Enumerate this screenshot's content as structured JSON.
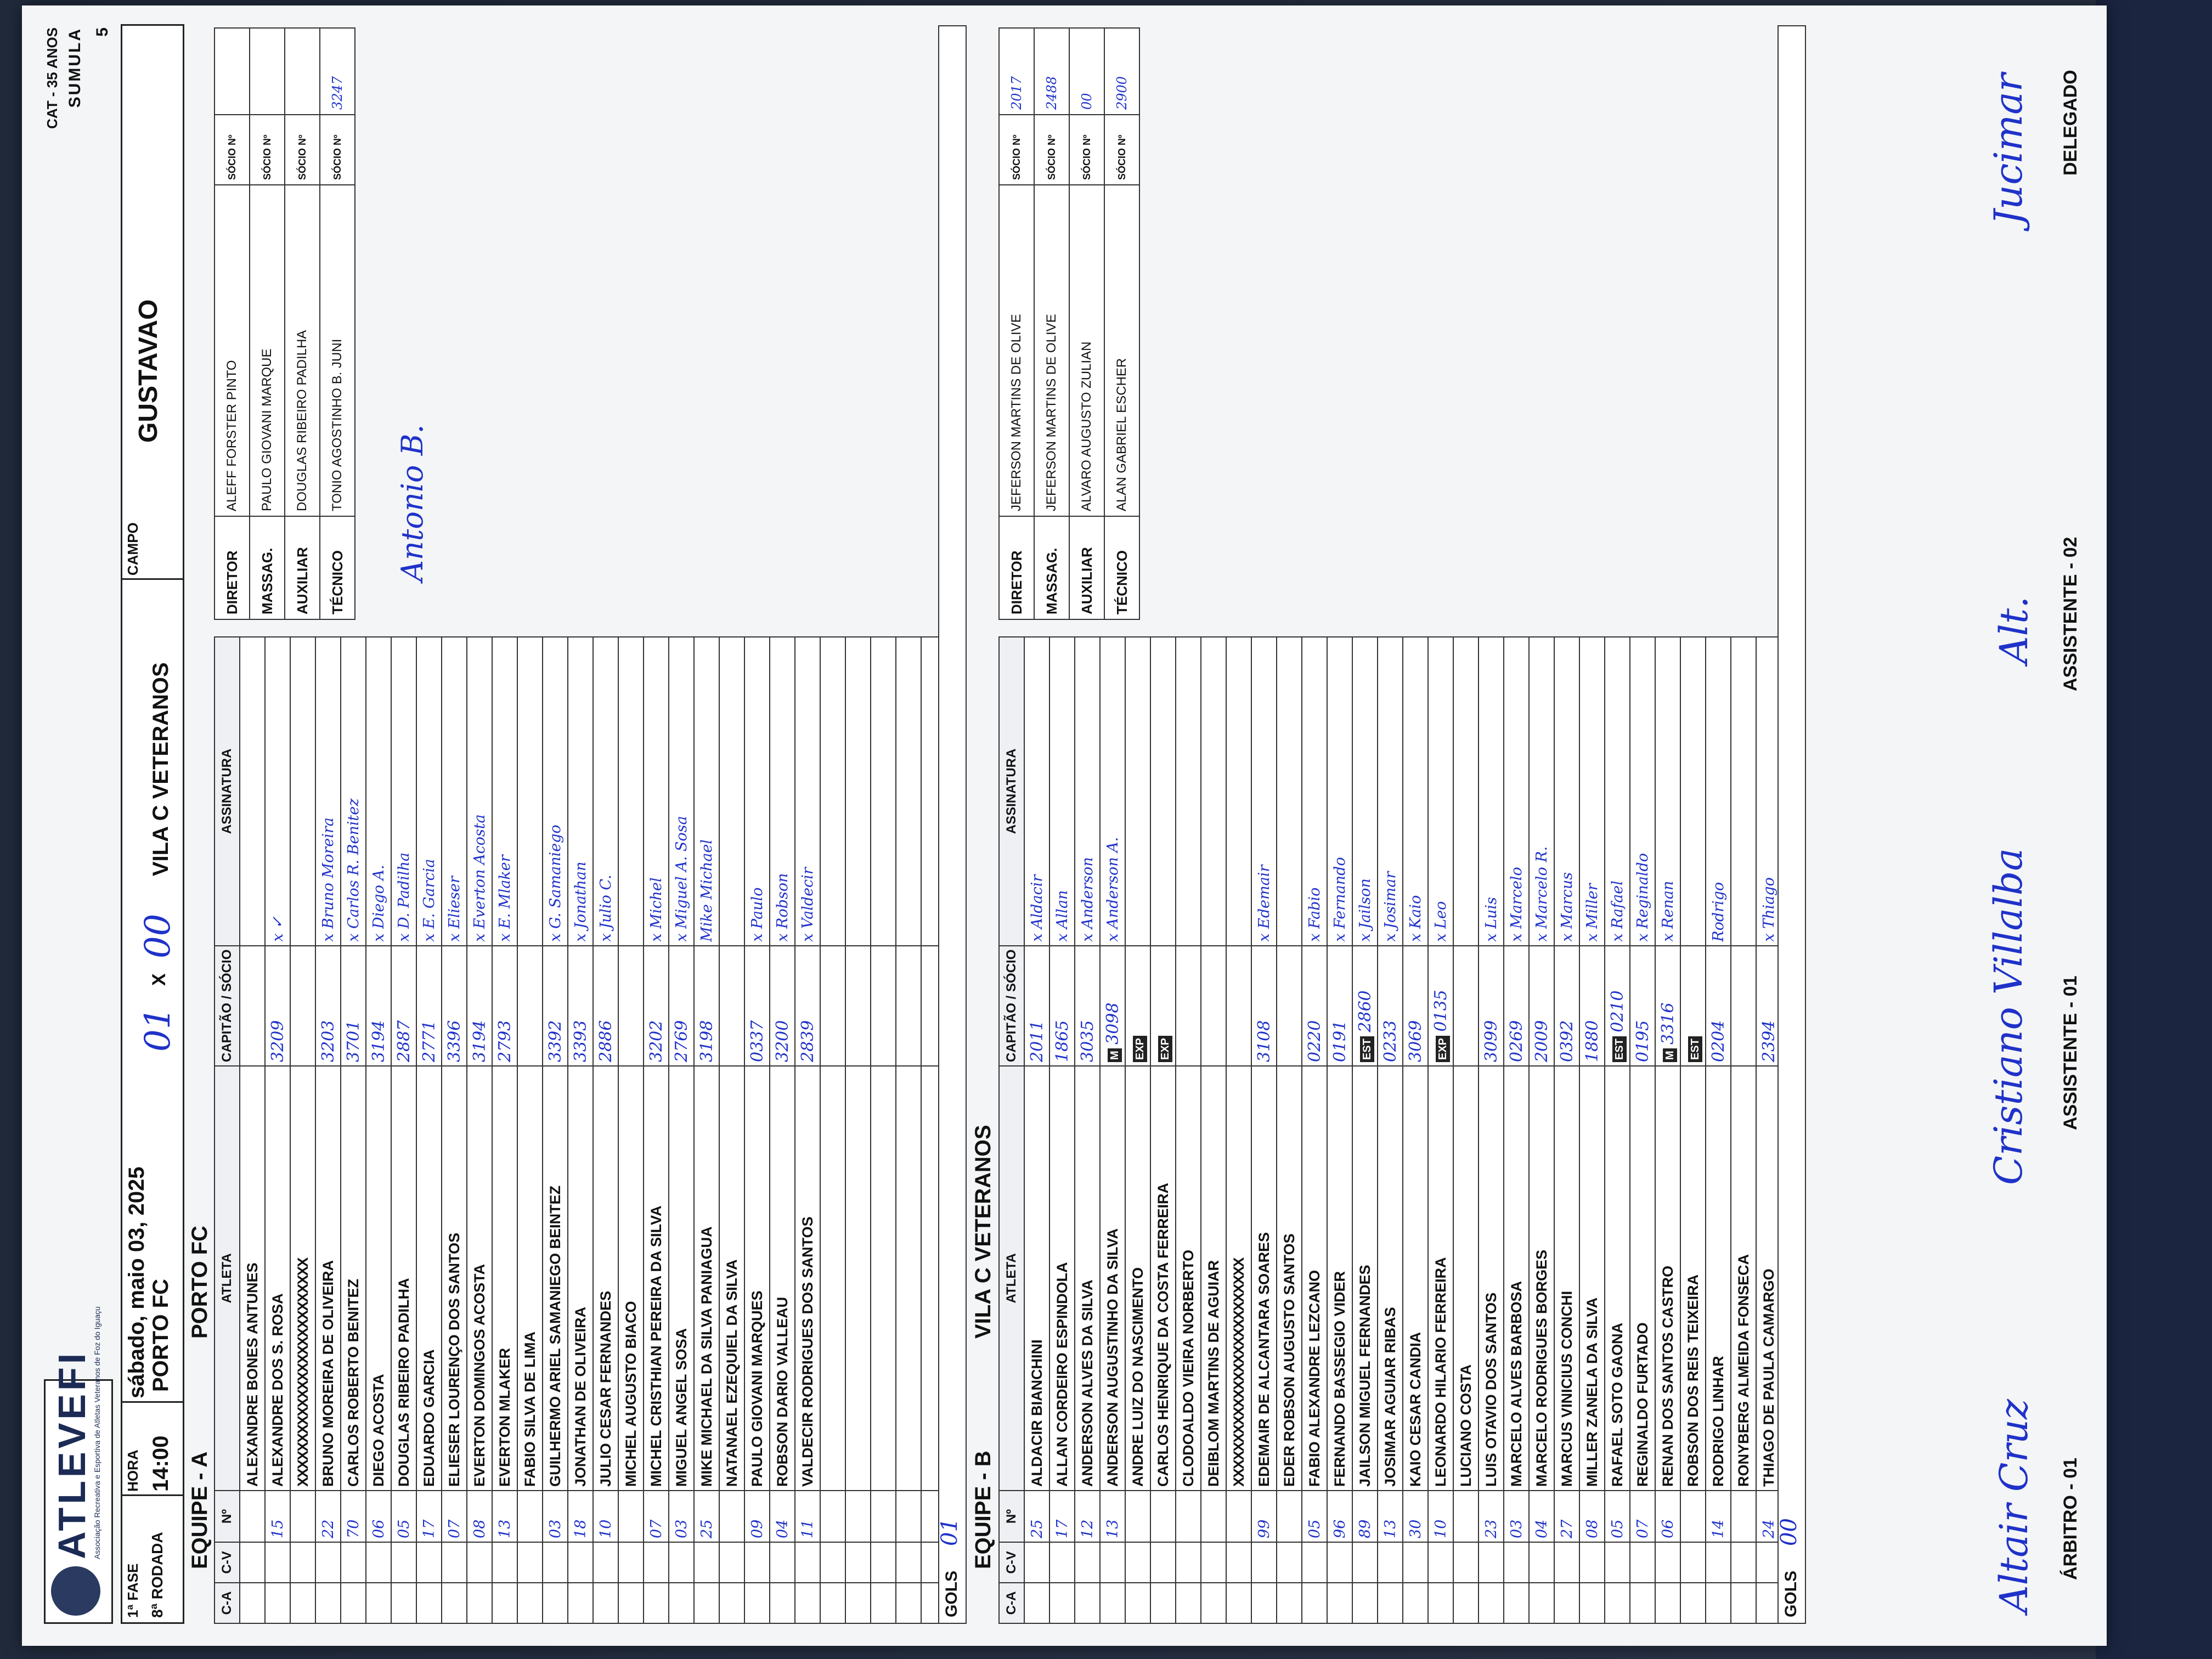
{
  "header": {
    "logo": "ATLEVEFI",
    "logo_sub": "Associação Recreativa e Esportiva de Atletas Veteranos de Foz do Iguaçu",
    "category": "CAT - 35 ANOS",
    "sheet": "SUMULA",
    "sheet_number": "5",
    "phase_label": "FASE",
    "phase": "1ª",
    "round_label": "RODADA",
    "round": "8ª",
    "time_label": "HORA",
    "time": "14:00",
    "date": "sábado, maio 03, 2025",
    "match_home": "PORTO FC",
    "match_away": "VILA C VETERANOS",
    "score_home": "01",
    "score_away": "00",
    "score_sep": "X",
    "field_label": "CAMPO",
    "field": "GUSTAVAO"
  },
  "team_a": {
    "label": "EQUIPE - A",
    "name": "PORTO FC",
    "col_ca": "C-A",
    "col_cv": "C-V",
    "col_num": "Nº",
    "col_athlete": "ATLETA",
    "col_captain": "CAPITÃO",
    "col_socio": "SÓCIO",
    "col_signature": "ASSINATURA",
    "goals_label": "GOLS",
    "goals": "01",
    "players": [
      {
        "num": "",
        "name": "ALEXANDRE BONES ANTUNES",
        "socio": "",
        "sign": ""
      },
      {
        "num": "15",
        "name": "ALEXANDRE DOS S. ROSA",
        "socio": "3209",
        "sign": "x ✓"
      },
      {
        "num": "",
        "name": "XXXXXXXXXXXXXXXXXXXXXXXXXX",
        "socio": "",
        "sign": ""
      },
      {
        "num": "22",
        "name": "BRUNO MOREIRA DE OLIVEIRA",
        "socio": "3203",
        "sign": "x Bruno Moreira"
      },
      {
        "num": "70",
        "name": "CARLOS ROBERTO BENITEZ",
        "socio": "3701",
        "sign": "x Carlos R. Benitez"
      },
      {
        "num": "06",
        "name": "DIEGO ACOSTA",
        "socio": "3194",
        "sign": "x Diego A."
      },
      {
        "num": "05",
        "name": "DOUGLAS RIBEIRO PADILHA",
        "socio": "2887",
        "sign": "x D. Padilha"
      },
      {
        "num": "17",
        "name": "EDUARDO GARCIA",
        "socio": "2771",
        "sign": "x E. Garcia"
      },
      {
        "num": "07",
        "name": "ELIESER LOURENÇO DOS SANTOS",
        "socio": "3396",
        "sign": "x Elieser"
      },
      {
        "num": "08",
        "name": "EVERTON DOMINGOS ACOSTA",
        "socio": "3194",
        "sign": "x Everton Acosta"
      },
      {
        "num": "13",
        "name": "EVERTON MLAKER",
        "socio": "2793",
        "sign": "x E. Mlaker"
      },
      {
        "num": "",
        "name": "FABIO SILVA DE LIMA",
        "socio": "",
        "sign": ""
      },
      {
        "num": "03",
        "name": "GUILHERMO ARIEL SAMANIEGO BEINTEZ",
        "socio": "3392",
        "sign": "x G. Samaniego"
      },
      {
        "num": "18",
        "name": "JONATHAN DE OLIVEIRA",
        "socio": "3393",
        "sign": "x Jonathan"
      },
      {
        "num": "10",
        "name": "JULIO CESAR FERNANDES",
        "socio": "2886",
        "sign": "x Julio C."
      },
      {
        "num": "",
        "name": "MICHEL AUGUSTO BIACO",
        "socio": "",
        "sign": ""
      },
      {
        "num": "07",
        "name": "MICHEL CRISTHIAN PEREIRA DA SILVA",
        "socio": "3202",
        "sign": "x Michel"
      },
      {
        "num": "03",
        "name": "MIGUEL ANGEL SOSA",
        "socio": "2769",
        "sign": "x Miguel A. Sosa"
      },
      {
        "num": "25",
        "name": "MIKE MICHAEL DA SILVA PANIAGUA",
        "socio": "3198",
        "sign": "Mike Michael"
      },
      {
        "num": "",
        "name": "NATANAEL EZEQUIEL DA SILVA",
        "socio": "",
        "sign": ""
      },
      {
        "num": "09",
        "name": "PAULO GIOVANI MARQUES",
        "socio": "0337",
        "sign": "x Paulo"
      },
      {
        "num": "04",
        "name": "ROBSON DARIO VALLEAU",
        "socio": "3200",
        "sign": "x Robson"
      },
      {
        "num": "11",
        "name": "VALDECIR RODRIGUES DOS SANTOS",
        "socio": "2839",
        "sign": "x Valdecir"
      }
    ],
    "blank_rows": 5,
    "staff": [
      {
        "role": "DIRETOR",
        "name": "ALEFF FORSTER PINTO",
        "socio_label": "SÓCIO Nº",
        "socio": ""
      },
      {
        "role": "MASSAG.",
        "name": "PAULO GIOVANI MARQUE",
        "socio_label": "SÓCIO Nº",
        "socio": ""
      },
      {
        "role": "AUXILIAR",
        "name": "DOUGLAS RIBEIRO PADILHA",
        "socio_label": "SÓCIO Nº",
        "socio": ""
      },
      {
        "role": "TÉCNICO",
        "name": "TONIO AGOSTINHO B. JUNI",
        "socio_label": "SÓCIO Nº",
        "socio": "3247",
        "sign": "Antonio B."
      }
    ]
  },
  "team_b": {
    "label": "EQUIPE - B",
    "name": "VILA C VETERANOS",
    "col_ca": "C-A",
    "col_cv": "C-V",
    "col_num": "Nº",
    "col_athlete": "ATLETA",
    "col_captain": "CAPITÃO",
    "col_socio": "SÓCIO",
    "col_signature": "ASSINATURA",
    "goals_label": "GOLS",
    "goals": "00",
    "players": [
      {
        "num": "25",
        "name": "ALDACIR BIANCHINI",
        "tag": "",
        "socio": "2011",
        "sign": "x Aldacir"
      },
      {
        "num": "17",
        "name": "ALLAN CORDEIRO ESPINDOLA",
        "tag": "",
        "socio": "1865",
        "sign": "x Allan"
      },
      {
        "num": "12",
        "name": "ANDERSON ALVES DA SILVA",
        "tag": "",
        "socio": "3035",
        "sign": "x Anderson"
      },
      {
        "num": "13",
        "name": "ANDERSON AUGUSTINHO DA SILVA",
        "tag": "M",
        "socio": "3098",
        "sign": "x Anderson A."
      },
      {
        "num": "",
        "name": "ANDRE LUIZ DO NASCIMENTO",
        "tag": "EXP",
        "socio": "",
        "sign": ""
      },
      {
        "num": "",
        "name": "CARLOS HENRIQUE DA COSTA FERREIRA",
        "tag": "EXP",
        "socio": "",
        "sign": ""
      },
      {
        "num": "",
        "name": "CLODOALDO VIEIRA NORBERTO",
        "tag": "",
        "socio": "",
        "sign": ""
      },
      {
        "num": "",
        "name": "DEIBLOM MARTINS DE AGUIAR",
        "tag": "",
        "socio": "",
        "sign": ""
      },
      {
        "num": "",
        "name": "XXXXXXXXXXXXXXXXXXXXXXXXXX",
        "tag": "",
        "socio": "",
        "sign": ""
      },
      {
        "num": "99",
        "name": "EDEMAIR DE ALCANTARA SOARES",
        "tag": "",
        "socio": "3108",
        "sign": "x Edemair"
      },
      {
        "num": "",
        "name": "EDER ROBSON AUGUSTO SANTOS",
        "tag": "",
        "socio": "",
        "sign": ""
      },
      {
        "num": "05",
        "name": "FABIO ALEXANDRE LEZCANO",
        "tag": "",
        "socio": "0220",
        "sign": "x Fabio"
      },
      {
        "num": "96",
        "name": "FERNANDO BASSEGIO VIDER",
        "tag": "",
        "socio": "0191",
        "sign": "x Fernando"
      },
      {
        "num": "89",
        "name": "JAILSON MIGUEL FERNANDES",
        "tag": "EST",
        "socio": "2860",
        "sign": "x Jailson"
      },
      {
        "num": "13",
        "name": "JOSIMAR AGUIAR RIBAS",
        "tag": "",
        "socio": "0233",
        "sign": "x Josimar"
      },
      {
        "num": "30",
        "name": "KAIO CESAR CANDIA",
        "tag": "",
        "socio": "3069",
        "sign": "x Kaio"
      },
      {
        "num": "10",
        "name": "LEONARDO HILARIO FERREIRA",
        "tag": "EXP",
        "socio": "0135",
        "sign": "x Leo"
      },
      {
        "num": "",
        "name": "LUCIANO COSTA",
        "tag": "",
        "socio": "",
        "sign": ""
      },
      {
        "num": "23",
        "name": "LUIS OTAVIO DOS SANTOS",
        "tag": "",
        "socio": "3099",
        "sign": "x Luis"
      },
      {
        "num": "03",
        "name": "MARCELO ALVES BARBOSA",
        "tag": "",
        "socio": "0269",
        "sign": "x Marcelo"
      },
      {
        "num": "04",
        "name": "MARCELO RODRIGUES BORGES",
        "tag": "",
        "socio": "2009",
        "sign": "x Marcelo R."
      },
      {
        "num": "27",
        "name": "MARCUS VINICIUS CONCHI",
        "tag": "",
        "socio": "0392",
        "sign": "x Marcus"
      },
      {
        "num": "08",
        "name": "MILLER ZANELA DA SILVA",
        "tag": "",
        "socio": "1880",
        "sign": "x Miller"
      },
      {
        "num": "05",
        "name": "RAFAEL SOTO GAONA",
        "tag": "EST",
        "socio": "0210",
        "sign": "x Rafael"
      },
      {
        "num": "07",
        "name": "REGINALDO FURTADO",
        "tag": "",
        "socio": "0195",
        "sign": "x Reginaldo"
      },
      {
        "num": "06",
        "name": "RENAN DOS SANTOS CASTRO",
        "tag": "M",
        "socio": "3316",
        "sign": "x Renan"
      },
      {
        "num": "",
        "name": "ROBSON DOS REIS TEIXEIRA",
        "tag": "EST",
        "socio": "",
        "sign": ""
      },
      {
        "num": "14",
        "name": "RODRIGO LINHAR",
        "tag": "",
        "socio": "0204",
        "sign": "Rodrigo"
      },
      {
        "num": "",
        "name": "RONYBERG ALMEIDA FONSECA",
        "tag": "",
        "socio": "",
        "sign": ""
      },
      {
        "num": "24",
        "name": "THIAGO DE PAULA CAMARGO",
        "tag": "",
        "socio": "2394",
        "sign": "x Thiago"
      }
    ],
    "staff": [
      {
        "role": "DIRETOR",
        "name": "JEFERSON MARTINS DE OLIVE",
        "socio_label": "SÓCIO Nº",
        "socio": "2017"
      },
      {
        "role": "MASSAG.",
        "name": "JEFERSON MARTINS DE OLIVE",
        "socio_label": "SÓCIO Nº",
        "socio": "2488"
      },
      {
        "role": "AUXILIAR",
        "name": "ALVARO AUGUSTO ZULIAN",
        "socio_label": "SÓCIO Nº",
        "socio": "00"
      },
      {
        "role": "TÉCNICO",
        "name": "ALAN GABRIEL ESCHER",
        "socio_label": "SÓCIO Nº",
        "socio": "2900"
      }
    ]
  },
  "footer": {
    "referee": "ÁRBITRO - 01",
    "assistant1": "ASSISTENTE - 01",
    "assistant2": "ASSISTENTE - 02",
    "delegate": "DELEGADO",
    "sig_referee": "Altair Cruz",
    "sig_assistant1": "Cristiano Villalba",
    "sig_assistant2": "Alt.",
    "sig_delegate": "Jucimar"
  }
}
